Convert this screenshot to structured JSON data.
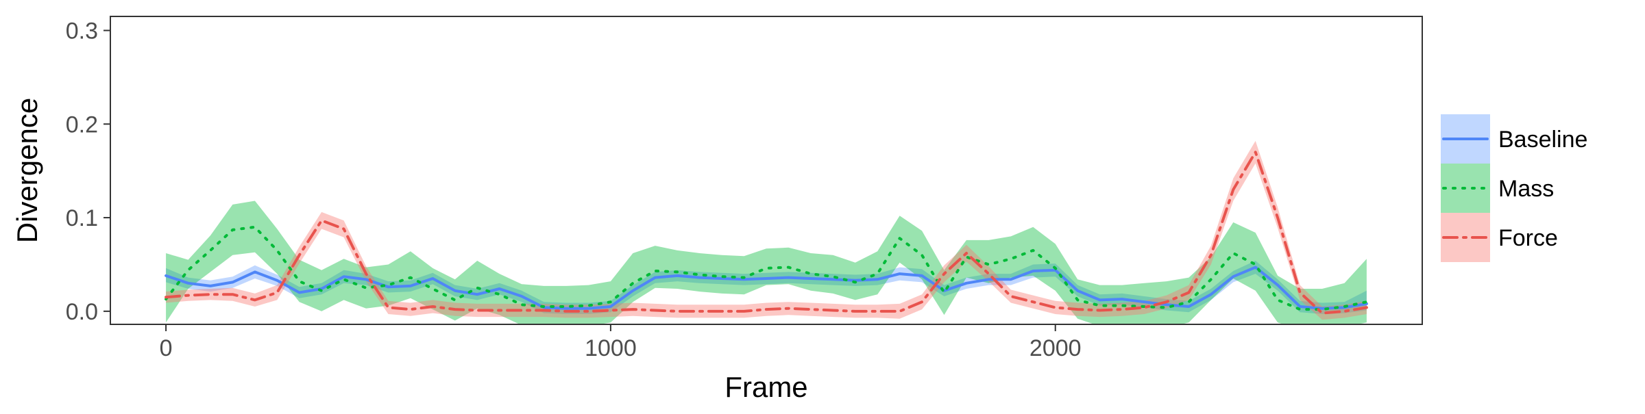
{
  "chart_data": {
    "type": "line",
    "title": "",
    "xlabel": "Frame",
    "ylabel": "Divergence",
    "xlim": [
      -125,
      2825
    ],
    "ylim": [
      -0.014,
      0.315
    ],
    "xticks": [
      0,
      1000,
      2000
    ],
    "yticks": [
      0.0,
      0.1,
      0.2,
      0.3
    ],
    "xtick_labels": [
      "0",
      "1000",
      "2000"
    ],
    "ytick_labels": [
      "0.0",
      "0.1",
      "0.2",
      "0.3"
    ],
    "grid": false,
    "legend_position": "right",
    "series": [
      {
        "name": "Baseline",
        "color": "#619CFF",
        "line_color": "#4F86F7",
        "linestyle": "solid",
        "x": [
          0,
          50,
          100,
          150,
          200,
          250,
          300,
          350,
          400,
          450,
          500,
          550,
          600,
          650,
          700,
          750,
          800,
          850,
          900,
          950,
          1000,
          1050,
          1100,
          1150,
          1200,
          1250,
          1300,
          1350,
          1400,
          1450,
          1500,
          1550,
          1600,
          1650,
          1700,
          1750,
          1800,
          1850,
          1900,
          1950,
          2000,
          2050,
          2100,
          2150,
          2200,
          2250,
          2300,
          2350,
          2400,
          2450,
          2500,
          2550,
          2600,
          2650,
          2700
        ],
        "y": [
          0.038,
          0.03,
          0.027,
          0.031,
          0.042,
          0.033,
          0.02,
          0.024,
          0.037,
          0.034,
          0.026,
          0.027,
          0.035,
          0.022,
          0.018,
          0.024,
          0.016,
          0.004,
          0.003,
          0.003,
          0.005,
          0.022,
          0.036,
          0.038,
          0.036,
          0.035,
          0.034,
          0.035,
          0.036,
          0.035,
          0.034,
          0.033,
          0.034,
          0.04,
          0.038,
          0.022,
          0.03,
          0.034,
          0.034,
          0.043,
          0.044,
          0.022,
          0.012,
          0.013,
          0.01,
          0.007,
          0.005,
          0.018,
          0.037,
          0.047,
          0.028,
          0.005,
          0.003,
          0.004,
          0.008
        ],
        "lower": [
          0.031,
          0.024,
          0.021,
          0.025,
          0.035,
          0.027,
          0.014,
          0.018,
          0.03,
          0.028,
          0.02,
          0.021,
          0.029,
          0.016,
          0.012,
          0.018,
          0.01,
          -0.002,
          -0.003,
          -0.003,
          -0.001,
          0.016,
          0.03,
          0.032,
          0.03,
          0.029,
          0.028,
          0.029,
          0.03,
          0.029,
          0.028,
          0.027,
          0.028,
          0.033,
          0.031,
          0.016,
          0.024,
          0.028,
          0.028,
          0.036,
          0.037,
          0.016,
          0.006,
          0.007,
          0.004,
          0.001,
          -0.001,
          0.012,
          0.031,
          0.04,
          0.022,
          -0.001,
          -0.003,
          -0.002,
          0.001
        ],
        "upper": [
          0.046,
          0.036,
          0.033,
          0.037,
          0.049,
          0.039,
          0.026,
          0.03,
          0.044,
          0.04,
          0.032,
          0.033,
          0.041,
          0.028,
          0.024,
          0.03,
          0.022,
          0.01,
          0.009,
          0.009,
          0.011,
          0.028,
          0.042,
          0.044,
          0.042,
          0.041,
          0.04,
          0.041,
          0.042,
          0.041,
          0.04,
          0.039,
          0.04,
          0.047,
          0.045,
          0.028,
          0.036,
          0.04,
          0.04,
          0.05,
          0.051,
          0.028,
          0.018,
          0.019,
          0.016,
          0.013,
          0.011,
          0.024,
          0.043,
          0.054,
          0.034,
          0.011,
          0.009,
          0.01,
          0.022
        ]
      },
      {
        "name": "Mass",
        "color": "#00BA38",
        "line_color": "#00BA38",
        "linestyle": "dotted",
        "x": [
          0,
          50,
          100,
          150,
          200,
          250,
          300,
          350,
          400,
          450,
          500,
          550,
          600,
          650,
          700,
          750,
          800,
          850,
          900,
          950,
          1000,
          1050,
          1100,
          1150,
          1200,
          1250,
          1300,
          1350,
          1400,
          1450,
          1500,
          1550,
          1600,
          1650,
          1700,
          1750,
          1800,
          1850,
          1900,
          1950,
          2000,
          2050,
          2100,
          2150,
          2200,
          2250,
          2300,
          2350,
          2400,
          2450,
          2500,
          2550,
          2600,
          2650,
          2700
        ],
        "y": [
          0.013,
          0.044,
          0.065,
          0.087,
          0.09,
          0.065,
          0.032,
          0.022,
          0.034,
          0.025,
          0.028,
          0.036,
          0.024,
          0.012,
          0.025,
          0.018,
          0.007,
          0.005,
          0.005,
          0.006,
          0.01,
          0.03,
          0.043,
          0.042,
          0.039,
          0.037,
          0.036,
          0.046,
          0.047,
          0.04,
          0.037,
          0.031,
          0.04,
          0.078,
          0.06,
          0.02,
          0.058,
          0.05,
          0.056,
          0.065,
          0.046,
          0.012,
          0.006,
          0.006,
          0.005,
          0.004,
          0.01,
          0.034,
          0.062,
          0.05,
          0.012,
          0.002,
          0.002,
          0.005,
          0.01
        ],
        "lower": [
          -0.012,
          0.024,
          0.042,
          0.06,
          0.063,
          0.04,
          0.01,
          0.0,
          0.012,
          0.003,
          0.006,
          0.014,
          0.002,
          -0.01,
          0.003,
          -0.004,
          -0.015,
          -0.017,
          -0.017,
          -0.016,
          -0.012,
          0.01,
          0.025,
          0.024,
          0.021,
          0.019,
          0.018,
          0.028,
          0.029,
          0.022,
          0.019,
          0.012,
          0.018,
          0.052,
          0.034,
          -0.004,
          0.036,
          0.03,
          0.036,
          0.038,
          0.022,
          -0.008,
          -0.016,
          -0.016,
          -0.017,
          -0.018,
          -0.012,
          0.012,
          0.035,
          0.022,
          -0.012,
          -0.02,
          -0.02,
          -0.017,
          -0.012
        ],
        "upper": [
          0.062,
          0.055,
          0.081,
          0.114,
          0.118,
          0.088,
          0.055,
          0.044,
          0.056,
          0.047,
          0.05,
          0.064,
          0.046,
          0.034,
          0.054,
          0.04,
          0.029,
          0.027,
          0.027,
          0.028,
          0.032,
          0.062,
          0.07,
          0.065,
          0.062,
          0.06,
          0.059,
          0.067,
          0.068,
          0.062,
          0.06,
          0.052,
          0.064,
          0.102,
          0.086,
          0.044,
          0.076,
          0.076,
          0.08,
          0.09,
          0.072,
          0.034,
          0.028,
          0.028,
          0.03,
          0.032,
          0.036,
          0.058,
          0.095,
          0.084,
          0.038,
          0.024,
          0.024,
          0.03,
          0.056
        ]
      },
      {
        "name": "Force",
        "color": "#F8766D",
        "line_color": "#E8534D",
        "linestyle": "dashdot",
        "x": [
          0,
          50,
          100,
          150,
          200,
          250,
          300,
          350,
          400,
          450,
          500,
          550,
          600,
          650,
          700,
          750,
          800,
          850,
          900,
          950,
          1000,
          1050,
          1100,
          1150,
          1200,
          1250,
          1300,
          1350,
          1400,
          1450,
          1500,
          1550,
          1600,
          1650,
          1700,
          1750,
          1800,
          1850,
          1900,
          1950,
          2000,
          2050,
          2100,
          2150,
          2200,
          2250,
          2300,
          2350,
          2400,
          2450,
          2500,
          2550,
          2600,
          2650,
          2700
        ],
        "y": [
          0.015,
          0.017,
          0.018,
          0.018,
          0.012,
          0.02,
          0.06,
          0.097,
          0.088,
          0.04,
          0.004,
          0.002,
          0.005,
          0.002,
          0.001,
          0.001,
          0.001,
          0.001,
          0.0,
          0.0,
          0.001,
          0.002,
          0.001,
          0.0,
          0.0,
          0.0,
          0.0,
          0.002,
          0.003,
          0.002,
          0.001,
          0.0,
          0.0,
          0.0,
          0.01,
          0.04,
          0.062,
          0.04,
          0.016,
          0.01,
          0.004,
          0.002,
          0.001,
          0.002,
          0.004,
          0.01,
          0.02,
          0.06,
          0.13,
          0.17,
          0.1,
          0.02,
          -0.002,
          0.0,
          0.004
        ],
        "lower": [
          0.009,
          0.011,
          0.012,
          0.011,
          0.005,
          0.012,
          0.051,
          0.088,
          0.079,
          0.032,
          -0.003,
          -0.005,
          -0.002,
          -0.005,
          -0.006,
          -0.006,
          -0.006,
          -0.006,
          -0.007,
          -0.007,
          -0.006,
          -0.005,
          -0.006,
          -0.007,
          -0.007,
          -0.007,
          -0.007,
          -0.005,
          -0.004,
          -0.005,
          -0.006,
          -0.007,
          -0.007,
          -0.008,
          0.002,
          0.031,
          0.053,
          0.032,
          0.009,
          0.003,
          -0.003,
          -0.005,
          -0.006,
          -0.005,
          -0.003,
          0.003,
          0.012,
          0.05,
          0.118,
          0.158,
          0.089,
          0.012,
          -0.009,
          -0.007,
          -0.003
        ],
        "upper": [
          0.021,
          0.023,
          0.024,
          0.025,
          0.019,
          0.028,
          0.069,
          0.106,
          0.097,
          0.048,
          0.011,
          0.009,
          0.012,
          0.009,
          0.008,
          0.008,
          0.008,
          0.008,
          0.007,
          0.007,
          0.008,
          0.009,
          0.008,
          0.007,
          0.007,
          0.007,
          0.007,
          0.009,
          0.01,
          0.009,
          0.008,
          0.007,
          0.007,
          0.008,
          0.018,
          0.049,
          0.071,
          0.048,
          0.023,
          0.017,
          0.011,
          0.009,
          0.008,
          0.009,
          0.011,
          0.017,
          0.028,
          0.07,
          0.142,
          0.182,
          0.111,
          0.028,
          0.005,
          0.007,
          0.011
        ]
      }
    ]
  }
}
